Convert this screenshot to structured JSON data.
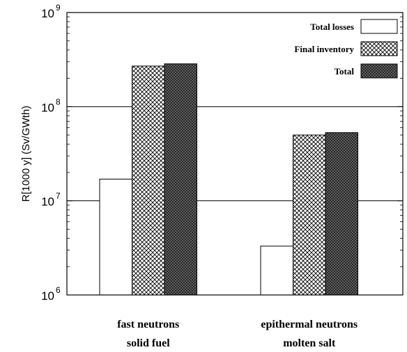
{
  "chart_data": {
    "type": "bar",
    "title": "",
    "xlabel": "",
    "ylabel": "R[1000 y] (Sv/GWth)",
    "yscale": "log",
    "ylim": [
      1000000,
      1000000000
    ],
    "yticks": [
      {
        "base": "10",
        "exp": "6",
        "value": 1000000
      },
      {
        "base": "10",
        "exp": "7",
        "value": 10000000
      },
      {
        "base": "10",
        "exp": "8",
        "value": 100000000
      },
      {
        "base": "10",
        "exp": "9",
        "value": 1000000000
      }
    ],
    "grid": "horizontal major lines",
    "legend_position": "top-right",
    "categories": [
      {
        "line1": "fast neutrons",
        "line2": "solid fuel"
      },
      {
        "line1": "epithermal neutrons",
        "line2": "molten salt"
      }
    ],
    "series": [
      {
        "name": "Total losses",
        "pattern": "white",
        "values": [
          17000000,
          3300000
        ]
      },
      {
        "name": "Final inventory",
        "pattern": "crosshatch",
        "values": [
          270000000,
          50000000
        ]
      },
      {
        "name": "Total",
        "pattern": "dark",
        "values": [
          285000000,
          53000000
        ]
      }
    ]
  }
}
